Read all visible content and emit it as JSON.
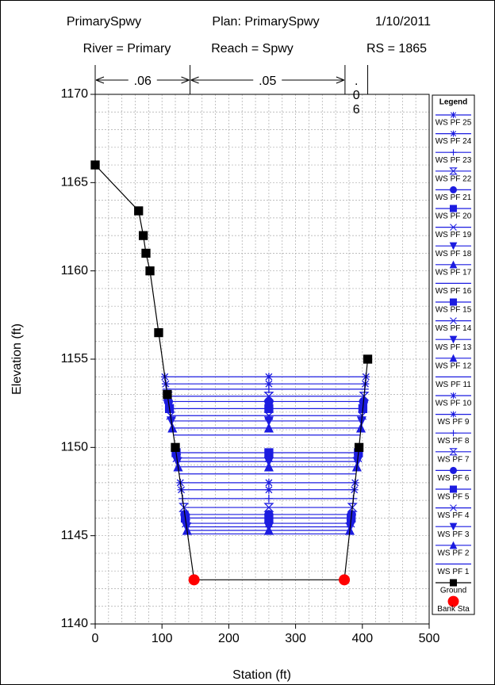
{
  "chart_data": {
    "type": "cross_section",
    "title": "PrimarySpwy",
    "plan": "Plan: PrimarySpwy",
    "date": "1/10/2011",
    "river": "River = Primary",
    "reach": "Reach = Spwy",
    "rs": "RS = 1865",
    "n_values": [
      ".06",
      ".05",
      ".06"
    ],
    "n_breaks": [
      0,
      142,
      374,
      408
    ],
    "xlabel": "Station (ft)",
    "ylabel": "Elevation (ft)",
    "xlim": [
      0,
      500
    ],
    "ylim": [
      1140,
      1170
    ],
    "xticks": [
      0,
      100,
      200,
      300,
      400,
      500
    ],
    "yticks": [
      1140,
      1145,
      1150,
      1155,
      1160,
      1165,
      1170
    ],
    "xminor": 20,
    "yminor": 1,
    "grid": true,
    "legend_title": "Legend",
    "legend_position": "right",
    "ws_station_mid": 260,
    "ws_color": "#1c1ce0",
    "water_surfaces": [
      {
        "name": "WS PF 25",
        "marker": "asterisk",
        "value": 1154.0
      },
      {
        "name": "WS PF 24",
        "marker": "asterisk",
        "value": 1153.6
      },
      {
        "name": "WS PF 23",
        "marker": "plus",
        "value": 1153.3
      },
      {
        "name": "WS PF 22",
        "marker": "hourglass",
        "value": 1152.9
      },
      {
        "name": "WS PF 21",
        "marker": "circle",
        "value": 1152.6
      },
      {
        "name": "WS PF 20",
        "marker": "square",
        "value": 1152.2
      },
      {
        "name": "WS PF 19",
        "marker": "x",
        "value": 1151.8
      },
      {
        "name": "WS PF 18",
        "marker": "triangle-down",
        "value": 1151.5
      },
      {
        "name": "WS PF 17",
        "marker": "triangle-up",
        "value": 1151.1
      },
      {
        "name": "WS PF 16",
        "marker": "none",
        "value": 1150.7
      },
      {
        "name": "WS PF 15",
        "marker": "square",
        "value": 1149.7
      },
      {
        "name": "WS PF 14",
        "marker": "x",
        "value": 1149.4
      },
      {
        "name": "WS PF 13",
        "marker": "triangle-down",
        "value": 1149.2
      },
      {
        "name": "WS PF 12",
        "marker": "triangle-up",
        "value": 1148.9
      },
      {
        "name": "WS PF 11",
        "marker": "none",
        "value": 1148.5
      },
      {
        "name": "WS PF 10",
        "marker": "asterisk",
        "value": 1148.0
      },
      {
        "name": "WS PF 9",
        "marker": "asterisk",
        "value": 1147.6
      },
      {
        "name": "WS PF 8",
        "marker": "plus",
        "value": 1147.1
      },
      {
        "name": "WS PF 7",
        "marker": "hourglass",
        "value": 1146.6
      },
      {
        "name": "WS PF 6",
        "marker": "circle",
        "value": 1146.2
      },
      {
        "name": "WS PF 5",
        "marker": "square",
        "value": 1146.0
      },
      {
        "name": "WS PF 4",
        "marker": "x",
        "value": 1145.7
      },
      {
        "name": "WS PF 3",
        "marker": "triangle-down",
        "value": 1145.5
      },
      {
        "name": "WS PF 2",
        "marker": "triangle-up",
        "value": 1145.3
      },
      {
        "name": "WS PF 1",
        "marker": "none",
        "value": 1145.1
      }
    ],
    "ground": {
      "name": "Ground",
      "color": "#000000",
      "marker": "square",
      "x": [
        0,
        65,
        72,
        76,
        82,
        95,
        108,
        120,
        148,
        373,
        395,
        408
      ],
      "values": [
        1166,
        1163.4,
        1162,
        1161,
        1160,
        1156.5,
        1153,
        1150,
        1142.5,
        1142.5,
        1150,
        1155
      ]
    },
    "bank_sta": {
      "name": "Bank Sta",
      "color": "#ff0000",
      "x": [
        148,
        373
      ],
      "values": [
        1142.5,
        1142.5
      ]
    }
  }
}
